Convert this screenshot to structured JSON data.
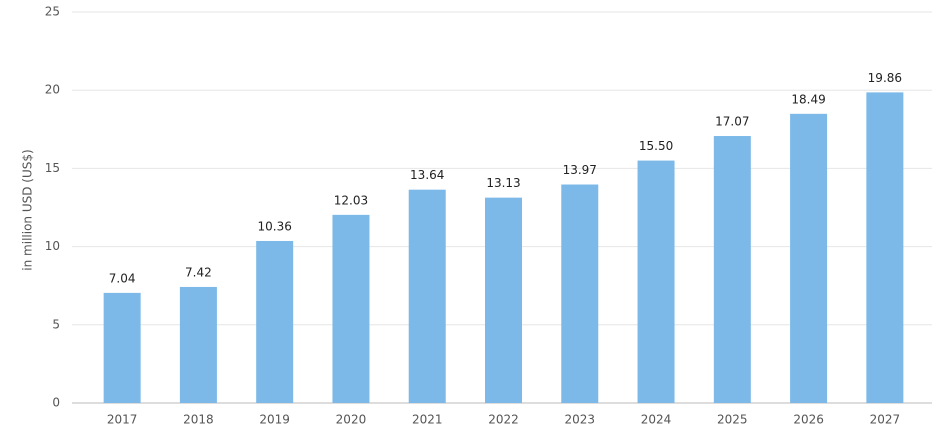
{
  "chart_data": {
    "type": "bar",
    "y_label": "in million USD (US$)",
    "categories": [
      "2017",
      "2018",
      "2019",
      "2020",
      "2021",
      "2022",
      "2023",
      "2024",
      "2025",
      "2026",
      "2027"
    ],
    "values": [
      7.04,
      7.42,
      10.36,
      12.03,
      13.64,
      13.13,
      13.97,
      15.5,
      17.07,
      18.49,
      19.86
    ],
    "value_labels": [
      "7.04",
      "7.42",
      "10.36",
      "12.03",
      "13.64",
      "13.13",
      "13.97",
      "15.50",
      "17.07",
      "18.49",
      "19.86"
    ],
    "color": "#7cb9e8",
    "ylim": [
      0,
      25
    ],
    "yticks": [
      0,
      5,
      10,
      15,
      20,
      25
    ],
    "grid": true
  }
}
